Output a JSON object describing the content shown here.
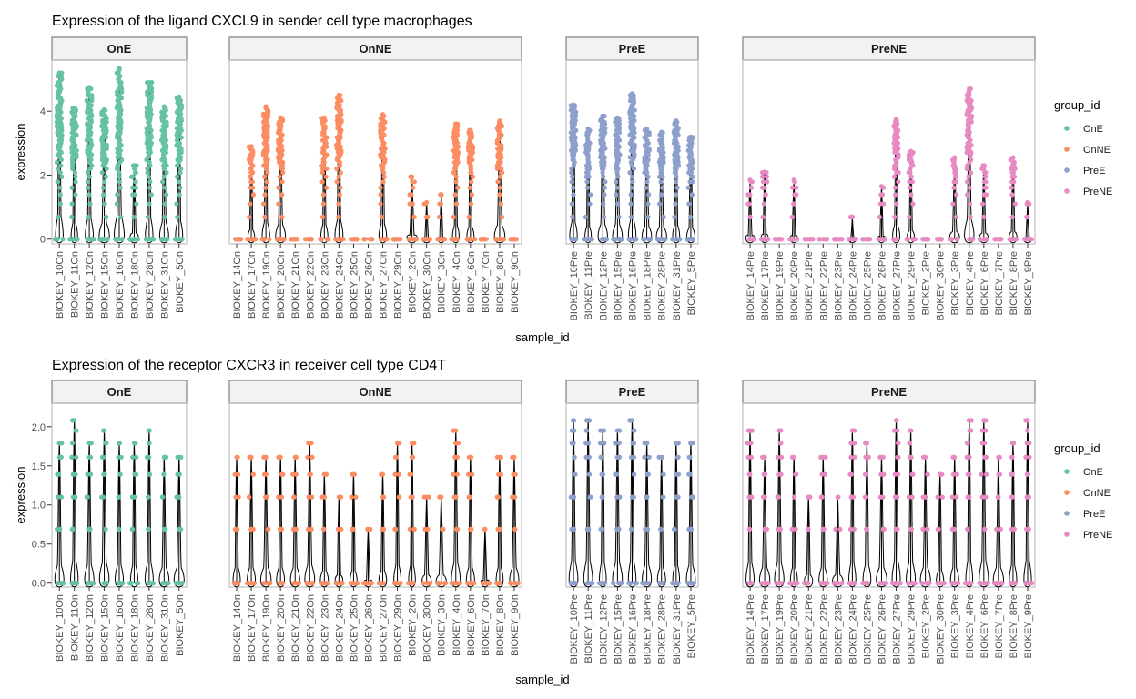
{
  "legend_title": "group_id",
  "groups": [
    {
      "name": "OnE",
      "color": "#66C2A5"
    },
    {
      "name": "OnNE",
      "color": "#FC8D62"
    },
    {
      "name": "PreE",
      "color": "#8DA0CB"
    },
    {
      "name": "PreNE",
      "color": "#E78AC3"
    }
  ],
  "chart_data": [
    {
      "type": "violin",
      "title": "Expression of the ligand CXCL9 in sender cell type macrophages",
      "xlabel": "sample_id",
      "ylabel": "expression",
      "ylim": [
        -0.15,
        5.6
      ],
      "yticks": [
        0,
        2,
        4
      ],
      "legend_position": "right",
      "facets": [
        {
          "label": "OnE",
          "group": "OnE",
          "samples": [
            {
              "id": "BIOKEY_10On",
              "max": 5.2
            },
            {
              "id": "BIOKEY_11On",
              "max": 4.1
            },
            {
              "id": "BIOKEY_12On",
              "max": 4.75
            },
            {
              "id": "BIOKEY_15On",
              "max": 4.05
            },
            {
              "id": "BIOKEY_16On",
              "max": 5.35
            },
            {
              "id": "BIOKEY_18On",
              "max": 2.3
            },
            {
              "id": "BIOKEY_28On",
              "max": 4.9
            },
            {
              "id": "BIOKEY_31On",
              "max": 4.15
            },
            {
              "id": "BIOKEY_5On",
              "max": 4.45
            }
          ]
        },
        {
          "label": "OnNE",
          "group": "OnNE",
          "samples": [
            {
              "id": "BIOKEY_14On",
              "max": 0
            },
            {
              "id": "BIOKEY_17On",
              "max": 2.9
            },
            {
              "id": "BIOKEY_19On",
              "max": 4.15
            },
            {
              "id": "BIOKEY_20On",
              "max": 3.8
            },
            {
              "id": "BIOKEY_21On",
              "max": 0
            },
            {
              "id": "BIOKEY_22On",
              "max": 0
            },
            {
              "id": "BIOKEY_23On",
              "max": 3.8
            },
            {
              "id": "BIOKEY_24On",
              "max": 4.5
            },
            {
              "id": "BIOKEY_25On",
              "max": 0
            },
            {
              "id": "BIOKEY_26On",
              "max": 0
            },
            {
              "id": "BIOKEY_27On",
              "max": 3.9
            },
            {
              "id": "BIOKEY_29On",
              "max": 0
            },
            {
              "id": "BIOKEY_2On",
              "max": 1.95
            },
            {
              "id": "BIOKEY_30On",
              "max": 1.15
            },
            {
              "id": "BIOKEY_3On",
              "max": 1.4
            },
            {
              "id": "BIOKEY_4On",
              "max": 3.6
            },
            {
              "id": "BIOKEY_6On",
              "max": 3.4
            },
            {
              "id": "BIOKEY_7On",
              "max": 0
            },
            {
              "id": "BIOKEY_8On",
              "max": 3.7
            },
            {
              "id": "BIOKEY_9On",
              "max": 0
            }
          ]
        },
        {
          "label": "PreE",
          "group": "PreE",
          "samples": [
            {
              "id": "BIOKEY_10Pre",
              "max": 4.2
            },
            {
              "id": "BIOKEY_11Pre",
              "max": 3.45
            },
            {
              "id": "BIOKEY_12Pre",
              "max": 3.85
            },
            {
              "id": "BIOKEY_15Pre",
              "max": 3.8
            },
            {
              "id": "BIOKEY_16Pre",
              "max": 4.55
            },
            {
              "id": "BIOKEY_18Pre",
              "max": 3.45
            },
            {
              "id": "BIOKEY_28Pre",
              "max": 3.35
            },
            {
              "id": "BIOKEY_31Pre",
              "max": 3.7
            },
            {
              "id": "BIOKEY_5Pre",
              "max": 3.2
            }
          ]
        },
        {
          "label": "PreNE",
          "group": "PreNE",
          "samples": [
            {
              "id": "BIOKEY_14Pre",
              "max": 1.85
            },
            {
              "id": "BIOKEY_17Pre",
              "max": 2.1
            },
            {
              "id": "BIOKEY_19Pre",
              "max": 0
            },
            {
              "id": "BIOKEY_20Pre",
              "max": 1.85
            },
            {
              "id": "BIOKEY_21Pre",
              "max": 0
            },
            {
              "id": "BIOKEY_22Pre",
              "max": 0
            },
            {
              "id": "BIOKEY_23Pre",
              "max": 0
            },
            {
              "id": "BIOKEY_24Pre",
              "max": 0.7
            },
            {
              "id": "BIOKEY_25Pre",
              "max": 0
            },
            {
              "id": "BIOKEY_26Pre",
              "max": 1.65
            },
            {
              "id": "BIOKEY_27Pre",
              "max": 3.75
            },
            {
              "id": "BIOKEY_29Pre",
              "max": 2.75
            },
            {
              "id": "BIOKEY_2Pre",
              "max": 0
            },
            {
              "id": "BIOKEY_30Pre",
              "max": 0
            },
            {
              "id": "BIOKEY_3Pre",
              "max": 2.55
            },
            {
              "id": "BIOKEY_4Pre",
              "max": 4.7
            },
            {
              "id": "BIOKEY_6Pre",
              "max": 2.3
            },
            {
              "id": "BIOKEY_7Pre",
              "max": 0
            },
            {
              "id": "BIOKEY_8Pre",
              "max": 2.55
            },
            {
              "id": "BIOKEY_9Pre",
              "max": 1.15
            }
          ]
        }
      ]
    },
    {
      "type": "violin",
      "title": "Expression of the receptor CXCR3 in receiver cell type CD4T",
      "xlabel": "sample_id",
      "ylabel": "expression",
      "ylim": [
        -0.05,
        2.3
      ],
      "yticks": [
        0.0,
        0.5,
        1.0,
        1.5,
        2.0
      ],
      "legend_position": "right",
      "facets": [
        {
          "label": "OnE",
          "group": "OnE",
          "samples": [
            {
              "id": "BIOKEY_10On",
              "max": 1.79
            },
            {
              "id": "BIOKEY_11On",
              "max": 2.08
            },
            {
              "id": "BIOKEY_12On",
              "max": 1.79
            },
            {
              "id": "BIOKEY_15On",
              "max": 1.95
            },
            {
              "id": "BIOKEY_16On",
              "max": 1.79
            },
            {
              "id": "BIOKEY_18On",
              "max": 1.79
            },
            {
              "id": "BIOKEY_28On",
              "max": 1.95
            },
            {
              "id": "BIOKEY_31On",
              "max": 1.61
            },
            {
              "id": "BIOKEY_5On",
              "max": 1.61
            }
          ]
        },
        {
          "label": "OnNE",
          "group": "OnNE",
          "samples": [
            {
              "id": "BIOKEY_14On",
              "max": 1.61
            },
            {
              "id": "BIOKEY_17On",
              "max": 1.61
            },
            {
              "id": "BIOKEY_19On",
              "max": 1.61
            },
            {
              "id": "BIOKEY_20On",
              "max": 1.61
            },
            {
              "id": "BIOKEY_21On",
              "max": 1.61
            },
            {
              "id": "BIOKEY_22On",
              "max": 1.79
            },
            {
              "id": "BIOKEY_23On",
              "max": 1.39
            },
            {
              "id": "BIOKEY_24On",
              "max": 1.1
            },
            {
              "id": "BIOKEY_25On",
              "max": 1.39
            },
            {
              "id": "BIOKEY_26On",
              "max": 0.69
            },
            {
              "id": "BIOKEY_27On",
              "max": 1.39
            },
            {
              "id": "BIOKEY_29On",
              "max": 1.79
            },
            {
              "id": "BIOKEY_2On",
              "max": 1.79
            },
            {
              "id": "BIOKEY_30On",
              "max": 1.1
            },
            {
              "id": "BIOKEY_3On",
              "max": 1.1
            },
            {
              "id": "BIOKEY_4On",
              "max": 1.95
            },
            {
              "id": "BIOKEY_6On",
              "max": 1.61
            },
            {
              "id": "BIOKEY_7On",
              "max": 0.69
            },
            {
              "id": "BIOKEY_8On",
              "max": 1.61
            },
            {
              "id": "BIOKEY_9On",
              "max": 1.61
            }
          ]
        },
        {
          "label": "PreE",
          "group": "PreE",
          "samples": [
            {
              "id": "BIOKEY_10Pre",
              "max": 2.08
            },
            {
              "id": "BIOKEY_11Pre",
              "max": 2.08
            },
            {
              "id": "BIOKEY_12Pre",
              "max": 1.95
            },
            {
              "id": "BIOKEY_15Pre",
              "max": 1.95
            },
            {
              "id": "BIOKEY_16Pre",
              "max": 2.08
            },
            {
              "id": "BIOKEY_18Pre",
              "max": 1.79
            },
            {
              "id": "BIOKEY_28Pre",
              "max": 1.61
            },
            {
              "id": "BIOKEY_31Pre",
              "max": 1.79
            },
            {
              "id": "BIOKEY_5Pre",
              "max": 1.79
            }
          ]
        },
        {
          "label": "PreNE",
          "group": "PreNE",
          "samples": [
            {
              "id": "BIOKEY_14Pre",
              "max": 1.95
            },
            {
              "id": "BIOKEY_17Pre",
              "max": 1.61
            },
            {
              "id": "BIOKEY_19Pre",
              "max": 1.95
            },
            {
              "id": "BIOKEY_20Pre",
              "max": 1.61
            },
            {
              "id": "BIOKEY_21Pre",
              "max": 1.1
            },
            {
              "id": "BIOKEY_22Pre",
              "max": 1.61
            },
            {
              "id": "BIOKEY_23Pre",
              "max": 1.1
            },
            {
              "id": "BIOKEY_24Pre",
              "max": 1.95
            },
            {
              "id": "BIOKEY_25Pre",
              "max": 1.79
            },
            {
              "id": "BIOKEY_26Pre",
              "max": 1.61
            },
            {
              "id": "BIOKEY_27Pre",
              "max": 2.08
            },
            {
              "id": "BIOKEY_29Pre",
              "max": 1.95
            },
            {
              "id": "BIOKEY_2Pre",
              "max": 1.61
            },
            {
              "id": "BIOKEY_30Pre",
              "max": 1.39
            },
            {
              "id": "BIOKEY_3Pre",
              "max": 1.61
            },
            {
              "id": "BIOKEY_4Pre",
              "max": 2.08
            },
            {
              "id": "BIOKEY_6Pre",
              "max": 2.08
            },
            {
              "id": "BIOKEY_7Pre",
              "max": 1.61
            },
            {
              "id": "BIOKEY_8Pre",
              "max": 1.79
            },
            {
              "id": "BIOKEY_9Pre",
              "max": 2.08
            }
          ]
        }
      ]
    }
  ]
}
